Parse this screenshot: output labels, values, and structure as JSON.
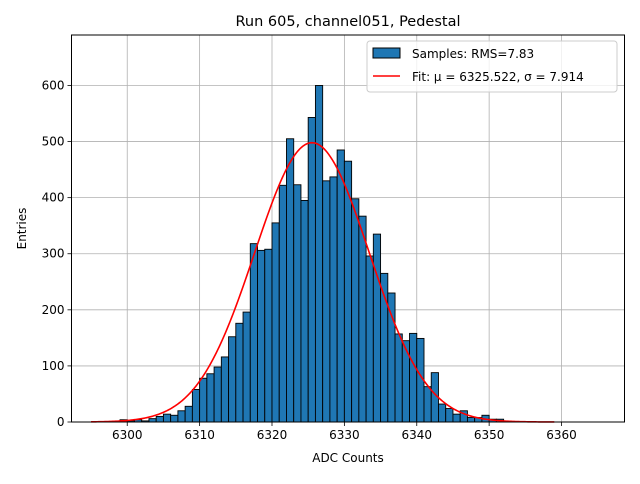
{
  "chart_data": {
    "type": "bar",
    "title": "Run 605, channel051, Pedestal",
    "xlabel": "ADC Counts",
    "ylabel": "Entries",
    "xlim": [
      6292.3,
      6368.7
    ],
    "ylim": [
      0,
      690
    ],
    "grid": true,
    "legend_position": "top-right",
    "xticks": [
      6300,
      6310,
      6320,
      6330,
      6340,
      6350,
      6360
    ],
    "yticks": [
      0,
      100,
      200,
      300,
      400,
      500,
      600
    ],
    "histogram": {
      "name": "Samples: RMS=7.83",
      "color": "#1f77b4",
      "bin_width": 1,
      "bin_starts": [
        6299,
        6300,
        6301,
        6302,
        6303,
        6304,
        6305,
        6306,
        6307,
        6308,
        6309,
        6310,
        6311,
        6312,
        6313,
        6314,
        6315,
        6316,
        6317,
        6318,
        6319,
        6320,
        6321,
        6322,
        6323,
        6324,
        6325,
        6326,
        6327,
        6328,
        6329,
        6330,
        6331,
        6332,
        6333,
        6334,
        6335,
        6336,
        6337,
        6338,
        6339,
        6340,
        6341,
        6342,
        6343,
        6344,
        6345,
        6346,
        6347,
        6348,
        6349,
        6350,
        6351
      ],
      "values": [
        4,
        2,
        4,
        2,
        6,
        10,
        14,
        12,
        20,
        28,
        58,
        78,
        86,
        98,
        116,
        152,
        176,
        196,
        318,
        306,
        308,
        355,
        422,
        505,
        423,
        395,
        543,
        600,
        430,
        437,
        485,
        465,
        398,
        367,
        296,
        335,
        265,
        230,
        157,
        145,
        158,
        149,
        63,
        88,
        32,
        24,
        14,
        20,
        8,
        8,
        12,
        5,
        5
      ]
    },
    "fit": {
      "name": "Fit: μ = 6325.522, σ = 7.914",
      "color": "#ff0000",
      "mu": 6325.522,
      "sigma": 7.914,
      "amplitude": 498,
      "x_range": [
        6295,
        6359
      ]
    }
  }
}
